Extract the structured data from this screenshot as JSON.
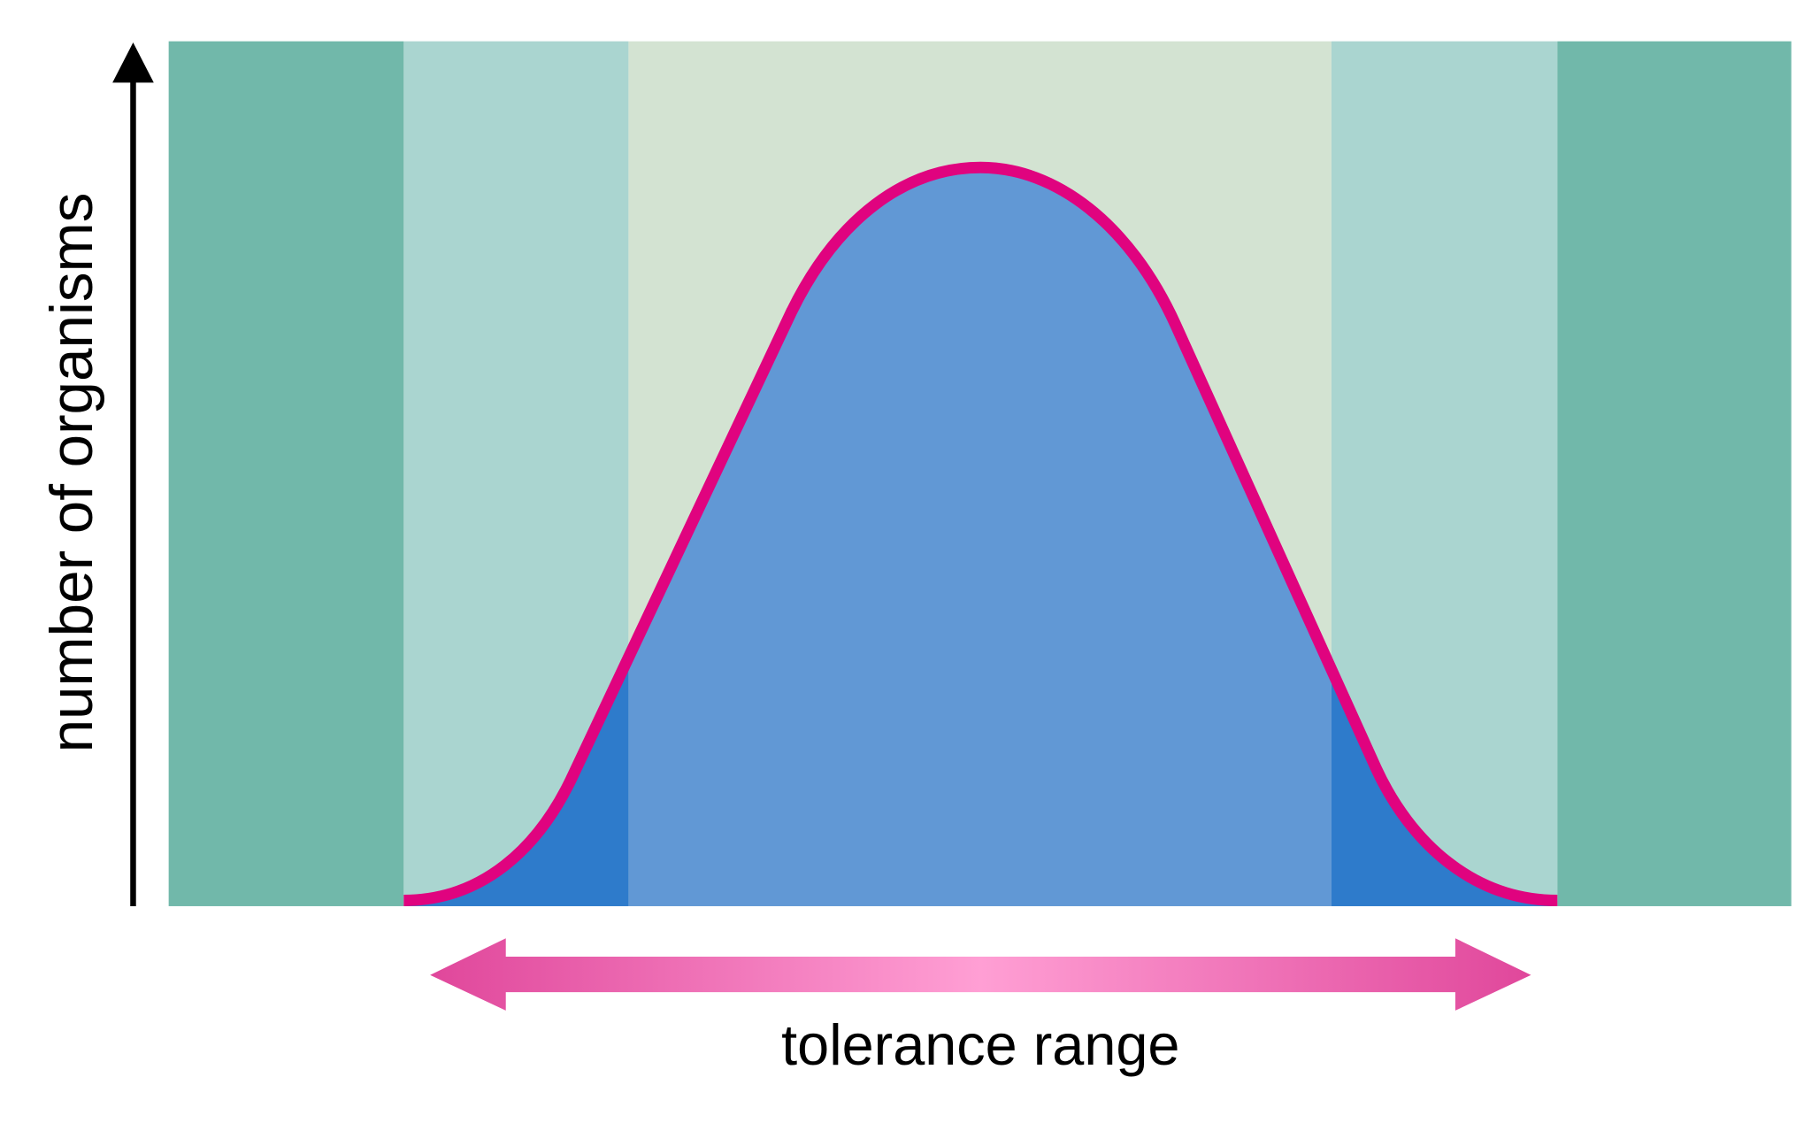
{
  "y_axis_label": "number of organisms",
  "range_label": "tolerance range",
  "colors": {
    "outer_zone": "#71b8aa",
    "stress_zone": "#aad5d0",
    "optimal_zone": "#d3e3d2",
    "curve_fill_optimal": "#6198d5",
    "curve_fill_stress": "#2e7bcb",
    "curve_stroke": "#e0037f",
    "range_arrow_edge": "#e0479b",
    "range_arrow_center": "#ff9fd4",
    "axis": "#000000"
  }
}
